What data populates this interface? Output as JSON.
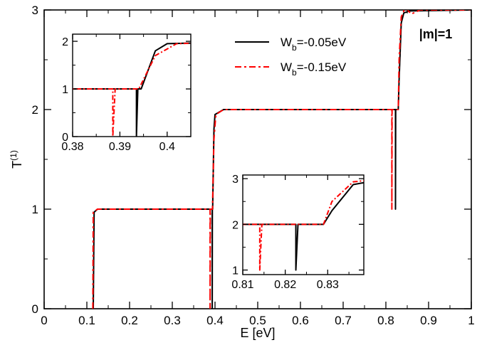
{
  "chart_data": {
    "type": "line",
    "xlabel": "E [eV]",
    "ylabel": "T",
    "ylabel_superscript": "(1)",
    "xlim": [
      0,
      1
    ],
    "ylim": [
      0,
      3
    ],
    "x_ticks": [
      "0",
      "0.1",
      "0.2",
      "0.3",
      "0.4",
      "0.5",
      "0.6",
      "0.7",
      "0.8",
      "0.9",
      "1"
    ],
    "y_ticks": [
      "0",
      "1",
      "2",
      "3"
    ],
    "annotation": "|m|=1",
    "series": [
      {
        "name": "W_b=-0.05eV",
        "legend_main": "W",
        "legend_sub": "b",
        "legend_rest": "=-0.05eV",
        "color": "#000000",
        "dash": "solid",
        "points": [
          [
            0.115,
            0
          ],
          [
            0.117,
            0.97
          ],
          [
            0.125,
            1.0
          ],
          [
            0.38,
            1.0
          ],
          [
            0.3935,
            1.0
          ],
          [
            0.3935,
            0.0
          ],
          [
            0.3938,
            1.0
          ],
          [
            0.3945,
            1.0
          ],
          [
            0.3975,
            1.8
          ],
          [
            0.4,
            1.95
          ],
          [
            0.42,
            2.0
          ],
          [
            0.81,
            2.0
          ],
          [
            0.8225,
            2.0
          ],
          [
            0.8225,
            1.0
          ],
          [
            0.823,
            2.0
          ],
          [
            0.829,
            2.0
          ],
          [
            0.831,
            2.3
          ],
          [
            0.836,
            2.87
          ],
          [
            0.842,
            2.97
          ],
          [
            0.855,
            2.99
          ],
          [
            1.0,
            3.0
          ]
        ]
      },
      {
        "name": "W_b=-0.15eV",
        "legend_main": "W",
        "legend_sub": "b",
        "legend_rest": "=-0.15eV",
        "color": "#ff0000",
        "dash": "dashed",
        "points": [
          [
            0.114,
            0
          ],
          [
            0.115,
            0.97
          ],
          [
            0.125,
            1.0
          ],
          [
            0.38,
            1.0
          ],
          [
            0.3885,
            1.0
          ],
          [
            0.3885,
            0.0
          ],
          [
            0.389,
            1.0
          ],
          [
            0.394,
            1.0
          ],
          [
            0.3975,
            1.7
          ],
          [
            0.402,
            1.95
          ],
          [
            0.42,
            2.0
          ],
          [
            0.81,
            2.0
          ],
          [
            0.814,
            2.0
          ],
          [
            0.814,
            1.0
          ],
          [
            0.8145,
            2.0
          ],
          [
            0.829,
            2.0
          ],
          [
            0.831,
            2.5
          ],
          [
            0.836,
            2.93
          ],
          [
            0.845,
            3.02
          ],
          [
            0.86,
            2.96
          ],
          [
            0.88,
            3.0
          ],
          [
            1.0,
            3.0
          ]
        ]
      }
    ],
    "insets": [
      {
        "xlim": [
          0.38,
          0.405
        ],
        "ylim": [
          0,
          2.15
        ],
        "x_ticks": [
          "0.38",
          "0.39",
          "0.4"
        ],
        "y_ticks": [
          "0",
          "1",
          "2"
        ]
      },
      {
        "xlim": [
          0.81,
          0.8385
        ],
        "ylim": [
          0.9,
          3.08
        ],
        "x_ticks": [
          "0.81",
          "0.82",
          "0.83"
        ],
        "y_ticks": [
          "1",
          "2",
          "3"
        ]
      }
    ]
  }
}
